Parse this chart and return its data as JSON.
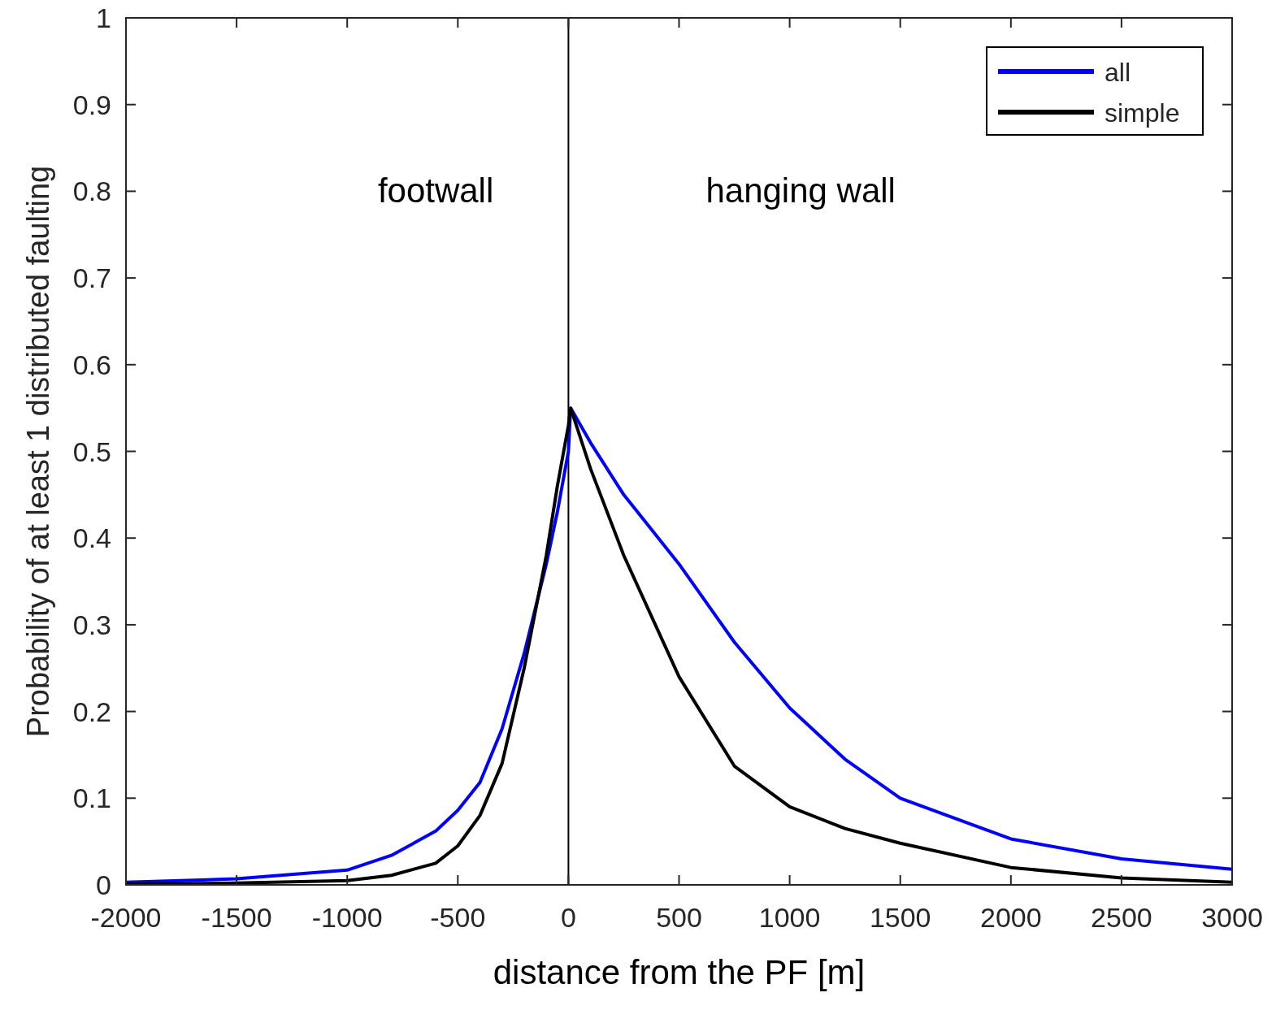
{
  "chart_data": {
    "type": "line",
    "xlabel": "distance from the PF [m]",
    "ylabel": "Probability of at least 1 distributed faulting",
    "xlim": [
      -2000,
      3000
    ],
    "xticks": [
      -2000,
      -1500,
      -1000,
      -500,
      0,
      500,
      1000,
      1500,
      2000,
      2500,
      3000
    ],
    "ylim": [
      0,
      1
    ],
    "yticks": [
      0,
      0.1,
      0.2,
      0.3,
      0.4,
      0.5,
      0.6,
      0.7,
      0.8,
      0.9,
      1
    ],
    "grid": false,
    "legend": "top right",
    "line_style": "solid",
    "ref_lines": [
      {
        "axis": "x",
        "value": 0,
        "color": "#000000"
      }
    ],
    "annotations": [
      "footwall",
      "hanging wall"
    ],
    "series": [
      {
        "name": "all",
        "color": "#0000ff",
        "x": [
          -2000,
          -1500,
          -1000,
          -800,
          -600,
          -500,
          -400,
          -300,
          -200,
          -100,
          -50,
          0,
          10,
          100,
          250,
          500,
          750,
          1000,
          1250,
          1500,
          2000,
          2500,
          3000
        ],
        "values": [
          0.003,
          0.007,
          0.017,
          0.034,
          0.062,
          0.086,
          0.118,
          0.18,
          0.267,
          0.37,
          0.43,
          0.5,
          0.55,
          0.51,
          0.45,
          0.37,
          0.28,
          0.204,
          0.145,
          0.1,
          0.053,
          0.03,
          0.018
        ]
      },
      {
        "name": "simple",
        "color": "#000000",
        "x": [
          -2000,
          -1500,
          -1000,
          -800,
          -600,
          -500,
          -400,
          -300,
          -200,
          -100,
          -50,
          0,
          10,
          100,
          250,
          500,
          750,
          1000,
          1250,
          1500,
          2000,
          2500,
          3000
        ],
        "values": [
          0.001,
          0.002,
          0.005,
          0.011,
          0.025,
          0.045,
          0.08,
          0.14,
          0.25,
          0.38,
          0.46,
          0.53,
          0.55,
          0.48,
          0.38,
          0.24,
          0.137,
          0.09,
          0.065,
          0.048,
          0.02,
          0.008,
          0.003
        ]
      }
    ]
  }
}
